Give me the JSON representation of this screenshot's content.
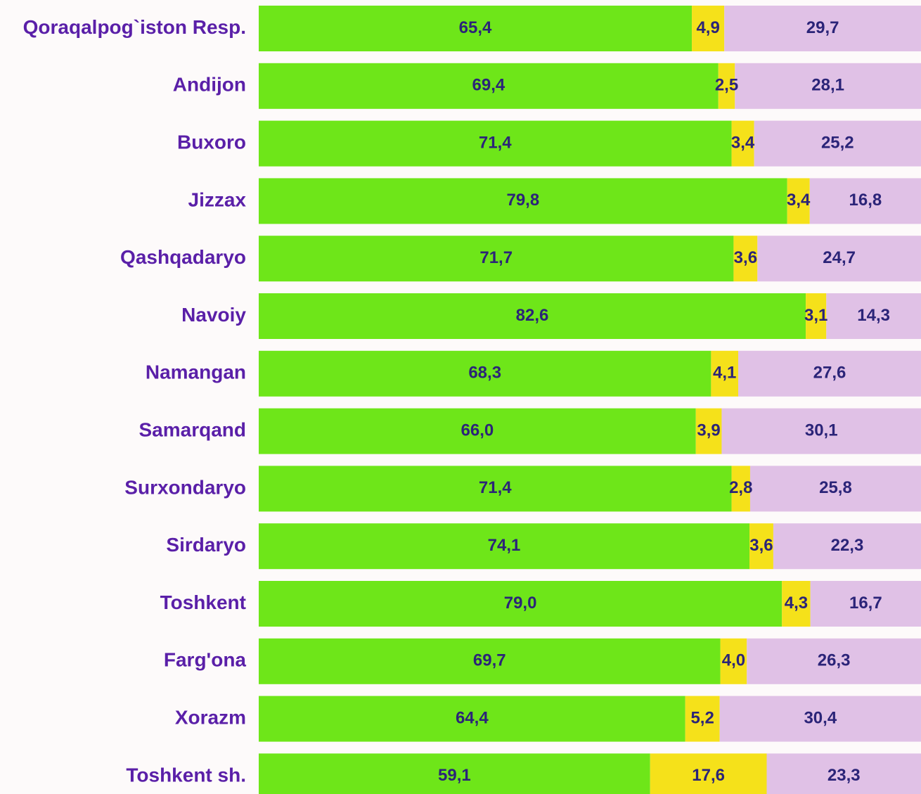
{
  "chart_data": {
    "type": "stacked-bar-horizontal",
    "categories": [
      "Qoraqalpog`iston Resp.",
      "Andijon",
      "Buxoro",
      "Jizzax",
      "Qashqadaryo",
      "Navoiy",
      "Namangan",
      "Samarqand",
      "Surxondaryo",
      "Sirdaryo",
      "Toshkent",
      "Farg'ona",
      "Xorazm",
      "Toshkent sh."
    ],
    "xlim": [
      0,
      100
    ],
    "series": [
      {
        "color": "#6ee619",
        "values": [
          65.4,
          69.4,
          71.4,
          79.8,
          71.7,
          82.6,
          68.3,
          66.0,
          71.4,
          74.1,
          79.0,
          69.7,
          64.4,
          59.1
        ],
        "value_labels": [
          "65,4",
          "69,4",
          "71,4",
          "79,8",
          "71,7",
          "82,6",
          "68,3",
          "66,0",
          "71,4",
          "74,1",
          "79,0",
          "69,7",
          "64,4",
          "59,1"
        ]
      },
      {
        "color": "#f5e11a",
        "values": [
          4.9,
          2.5,
          3.4,
          3.4,
          3.6,
          3.1,
          4.1,
          3.9,
          2.8,
          3.6,
          4.3,
          4.0,
          5.2,
          17.6
        ],
        "value_labels": [
          "4,9",
          "2,5",
          "3,4",
          "3,4",
          "3,6",
          "3,1",
          "4,1",
          "3,9",
          "2,8",
          "3,6",
          "4,3",
          "4,0",
          "5,2",
          "17,6"
        ]
      },
      {
        "color": "#e0c1e6",
        "values": [
          29.7,
          28.1,
          25.2,
          16.8,
          24.7,
          14.3,
          27.6,
          30.1,
          25.8,
          22.3,
          16.7,
          26.3,
          30.4,
          23.3
        ],
        "value_labels": [
          "29,7",
          "28,1",
          "25,2",
          "16,8",
          "24,7",
          "14,3",
          "27,6",
          "30,1",
          "25,8",
          "22,3",
          "16,7",
          "26,3",
          "30,4",
          "23,3"
        ]
      }
    ]
  }
}
